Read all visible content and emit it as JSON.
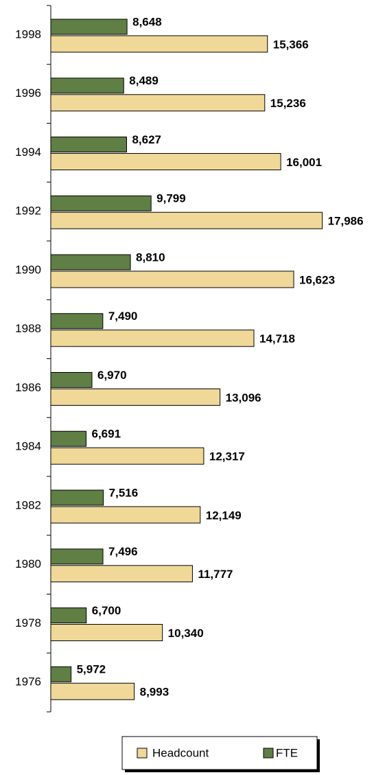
{
  "chart_data": {
    "type": "hbar",
    "categories": [
      "1998",
      "1996",
      "1994",
      "1992",
      "1990",
      "1988",
      "1986",
      "1984",
      "1982",
      "1980",
      "1978",
      "1976"
    ],
    "series": [
      {
        "name": "FTE",
        "color": "#5f7f45",
        "values": [
          8648,
          8489,
          8627,
          9799,
          8810,
          7490,
          6970,
          6691,
          7516,
          7496,
          6700,
          5972
        ],
        "value_labels": [
          "8,648",
          "8,489",
          "8,627",
          "9,799",
          "8,810",
          "7,490",
          "6,970",
          "6,691",
          "7,516",
          "7,496",
          "6,700",
          "5,972"
        ]
      },
      {
        "name": "Headcount",
        "color": "#f0d898",
        "values": [
          15366,
          15236,
          16001,
          17986,
          16623,
          14718,
          13096,
          12317,
          12149,
          11777,
          10340,
          8993
        ],
        "value_labels": [
          "15,366",
          "15,236",
          "16,001",
          "17,986",
          "16,623",
          "14,718",
          "13,096",
          "12,317",
          "12,149",
          "11,777",
          "10,340",
          "8,993"
        ]
      }
    ],
    "xlim": [
      5000,
      18000
    ]
  }
}
